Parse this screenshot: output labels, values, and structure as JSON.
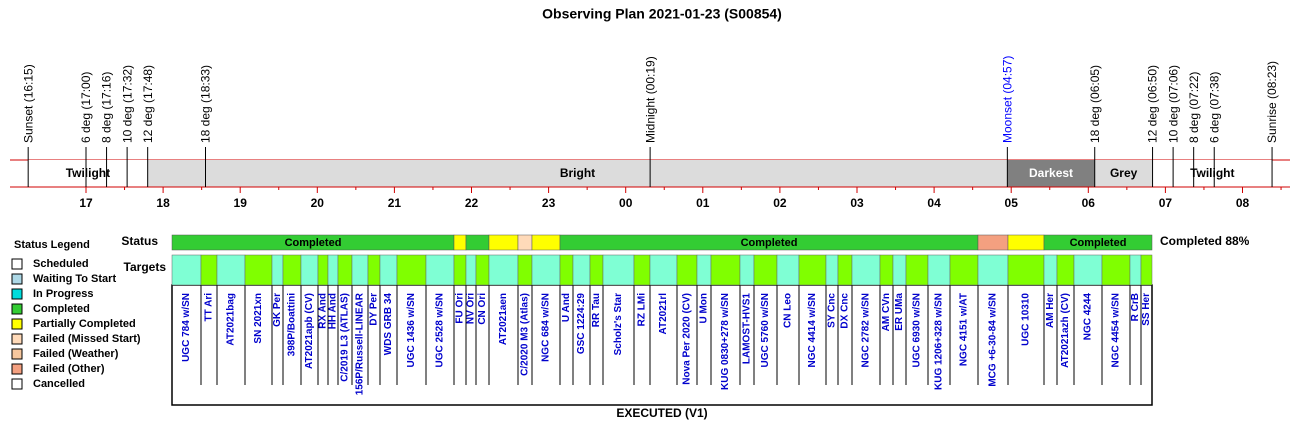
{
  "title": "Observing Plan 2021-01-23 (S00854)",
  "events": [
    {
      "label": "Sunset (16:15)",
      "color": "#000000"
    },
    {
      "label": "6 deg (17:00)",
      "color": "#000000"
    },
    {
      "label": "8 deg (17:16)",
      "color": "#000000"
    },
    {
      "label": "10 deg (17:32)",
      "color": "#000000"
    },
    {
      "label": "12 deg (17:48)",
      "color": "#000000"
    },
    {
      "label": "18 deg (18:33)",
      "color": "#000000"
    },
    {
      "label": "Midnight (00:19)",
      "color": "#000000"
    },
    {
      "label": "Moonset (04:57)",
      "color": "#0000ff"
    },
    {
      "label": "18 deg (06:05)",
      "color": "#000000"
    },
    {
      "label": "12 deg (06:50)",
      "color": "#000000"
    },
    {
      "label": "10 deg (07:06)",
      "color": "#000000"
    },
    {
      "label": "8 deg (07:22)",
      "color": "#000000"
    },
    {
      "label": "6 deg (07:38)",
      "color": "#000000"
    },
    {
      "label": "Sunrise (08:23)",
      "color": "#000000"
    }
  ],
  "bands": [
    {
      "label": "Twilight",
      "color": "#ffffff",
      "text_color": "#000000"
    },
    {
      "label": "Bright",
      "color": "#dcdcdc",
      "text_color": "#000000"
    },
    {
      "label": "Darkest",
      "color": "#808080",
      "text_color": "#ffffff"
    },
    {
      "label": "Grey",
      "color": "#dcdcdc",
      "text_color": "#000000"
    },
    {
      "label": "Twilight",
      "color": "#ffffff",
      "text_color": "#000000"
    }
  ],
  "hours": [
    "17",
    "18",
    "19",
    "20",
    "21",
    "22",
    "23",
    "00",
    "01",
    "02",
    "03",
    "04",
    "05",
    "06",
    "07",
    "08"
  ],
  "legend": {
    "title": "Status Legend",
    "items": [
      {
        "label": "Scheduled",
        "color": "#ffffff"
      },
      {
        "label": "Waiting To Start",
        "color": "#add8e6"
      },
      {
        "label": "In Progress",
        "color": "#00dddd"
      },
      {
        "label": "Completed",
        "color": "#33cc33"
      },
      {
        "label": "Partially Completed",
        "color": "#ffff00"
      },
      {
        "label": "Failed (Missed Start)",
        "color": "#ffdab9"
      },
      {
        "label": "Failed (Weather)",
        "color": "#f6c79e"
      },
      {
        "label": "Failed (Other)",
        "color": "#f4a080"
      },
      {
        "label": "Cancelled",
        "color": "#ffffff"
      }
    ]
  },
  "status": {
    "label": "Status",
    "summary": "Completed 88%",
    "segments": [
      {
        "status": "Completed",
        "label": "Completed"
      },
      {
        "status": "Partially Completed"
      },
      {
        "status": "Completed"
      },
      {
        "status": "Partially Completed"
      },
      {
        "status": "Failed (Missed Start)"
      },
      {
        "status": "Partially Completed"
      },
      {
        "status": "Completed",
        "label": "Completed"
      },
      {
        "status": "Failed (Other)"
      },
      {
        "status": "Partially Completed"
      },
      {
        "status": "Completed",
        "label": "Completed"
      }
    ]
  },
  "targets": {
    "label": "Targets",
    "colors": [
      "#7fffd4",
      "#80ff00"
    ],
    "text_color": "#0000cc",
    "names": [
      "UGC 784 w/SN",
      "TT Ari",
      "AT2021bag",
      "SN 2021xn",
      "GK Per",
      "398P/Boattini",
      "AT2021apb (CV)",
      "RX And",
      "HH And",
      "C/2019 L3 (ATLAS)",
      "156P/Russell-LINEAR",
      "DY Per",
      "WDS GRB 34",
      "UGC 1436 w/SN",
      "UGC 2528 w/SN",
      "FU Ori",
      "NV Ori",
      "CN Ori",
      "AT2021aen",
      "C/2020 M3 (Atlas)",
      "NGC 684 w/SN",
      "U And",
      "GSC 1224:29",
      "RR Tau",
      "Scholz's Star",
      "RZ LMi",
      "AT2021rl",
      "Nova Per 2020 (CV)",
      "U Mon",
      "KUG 0830+278 w/SN",
      "LAMOST-HVS1",
      "UGC 5760 w/SN",
      "CN Leo",
      "NGC 4414 w/SN",
      "SY Cnc",
      "DX Cnc",
      "NGC 2782 w/SN",
      "AM CVn",
      "ER UMa",
      "UGC 6930 w/SN",
      "KUG 1206+328 w/SN",
      "NGC 4151 w/AT",
      "MCG +6-30-84 w/SN",
      "UGC 10310",
      "AM Her",
      "AT2021azh (CV)",
      "NGC 4244",
      "NGC 4454 w/SN",
      "R CrB",
      "SS Her"
    ]
  },
  "footer": "EXECUTED (V1)"
}
